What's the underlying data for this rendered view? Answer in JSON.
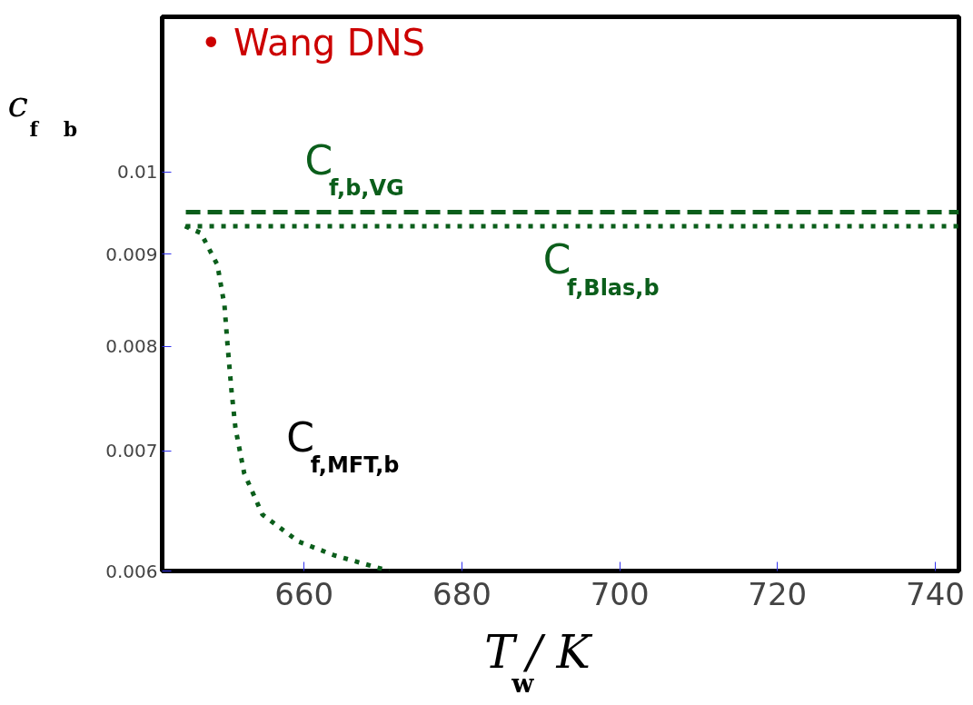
{
  "chart_data": {
    "type": "line",
    "xlabel": "T$_{w}$ / K",
    "ylabel": "c$_{f}$ $_{b}$",
    "log": "y",
    "xlim": [
      642,
      743
    ],
    "ylim": [
      0.006,
      0.0122
    ],
    "xticks": [
      660,
      680,
      700,
      720,
      740
    ],
    "yticks": [
      0.006,
      0.007,
      0.008,
      0.009,
      0.01
    ],
    "grid": false,
    "series": [
      {
        "color": "#0b5e1b",
        "line_style": "dashed",
        "x": [
          645,
          743
        ],
        "values": [
          0.0095,
          0.0095
        ]
      },
      {
        "color": "#0b5e1b",
        "line_style": "dotted",
        "x": [
          645,
          743
        ],
        "values": [
          0.00933,
          0.00933
        ]
      },
      {
        "color": "#0b5e1b",
        "line_style": "dotted",
        "x": [
          644.9,
          646.9,
          649.0,
          649.9,
          650.3,
          650.8,
          651.3,
          652.4,
          654.7,
          659.3,
          663.9,
          670.8
        ],
        "values": [
          0.00933,
          0.00925,
          0.00888,
          0.00843,
          0.008,
          0.00755,
          0.0072,
          0.0068,
          0.00645,
          0.00623,
          0.00612,
          0.006
        ]
      }
    ],
    "annotations": [
      "• Wang DNS",
      "C$_{f,b,VG}$",
      "C$_{f,Blas,b}$",
      "C$_{f,MFT,b}$"
    ]
  }
}
